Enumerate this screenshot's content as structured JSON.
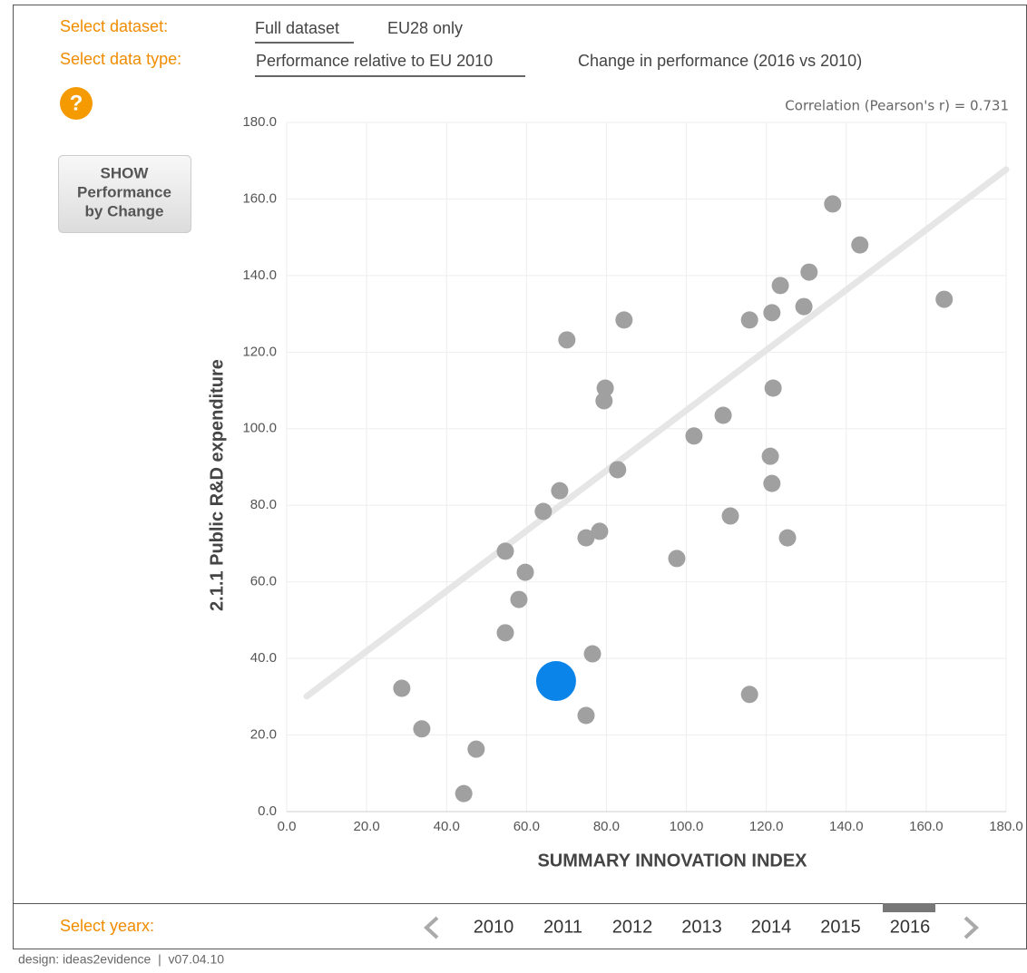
{
  "controls": {
    "dataset_label": "Select dataset:",
    "dataset_options": [
      "Full dataset",
      "EU28 only"
    ],
    "datatype_label": "Select data type:",
    "datatype_options": [
      "Performance relative to EU 2010",
      "Change in performance (2016 vs 2010)"
    ],
    "help_icon": "?",
    "button_lines": [
      "SHOW",
      "Performance",
      "by Change"
    ]
  },
  "chart_data": {
    "type": "scatter",
    "annotation": "Correlation (Pearson's r) = 0.731",
    "xlabel": "SUMMARY INNOVATION INDEX",
    "ylabel": "2.1.1 Public R&D expenditure",
    "xlim": [
      0,
      180
    ],
    "ylim": [
      0,
      180
    ],
    "xticks": [
      {
        "value": 0,
        "label": "0.0"
      },
      {
        "value": 20,
        "label": "20.0"
      },
      {
        "value": 40,
        "label": "40.0"
      },
      {
        "value": 60,
        "label": "60.0"
      },
      {
        "value": 80,
        "label": "80.0"
      },
      {
        "value": 100,
        "label": "100.0"
      },
      {
        "value": 120,
        "label": "120.0"
      },
      {
        "value": 140,
        "label": "140.0"
      },
      {
        "value": 160,
        "label": "160.0"
      },
      {
        "value": 180,
        "label": "180.0"
      }
    ],
    "yticks": [
      {
        "value": 0,
        "label": "0.0"
      },
      {
        "value": 20,
        "label": "20.0"
      },
      {
        "value": 40,
        "label": "40.0"
      },
      {
        "value": 60,
        "label": "60.0"
      },
      {
        "value": 80,
        "label": "80.0"
      },
      {
        "value": 100,
        "label": "100.0"
      },
      {
        "value": 120,
        "label": "120.0"
      },
      {
        "value": 140,
        "label": "140.0"
      },
      {
        "value": 160,
        "label": "160.0"
      },
      {
        "value": 180,
        "label": "180.0"
      }
    ],
    "grid": true,
    "color": "#a0a0a0",
    "x": [
      28.8,
      33.8,
      44.3,
      47.4,
      54.7,
      54.7,
      58.1,
      59.7,
      64.2,
      68.3,
      70.1,
      74.9,
      74.9,
      76.5,
      78.3,
      79.7,
      79.4,
      82.8,
      84.4,
      97.6,
      101.9,
      109.2,
      111.0,
      115.8,
      115.8,
      121.0,
      121.4,
      121.7,
      121.4,
      123.5,
      125.3,
      129.4,
      130.7,
      136.6,
      143.4,
      164.5
    ],
    "y": [
      32.2,
      21.6,
      4.7,
      16.3,
      46.7,
      68.0,
      55.4,
      62.5,
      78.4,
      83.8,
      123.2,
      71.5,
      25.1,
      41.2,
      73.2,
      110.6,
      107.3,
      89.3,
      128.4,
      66.1,
      98.1,
      103.5,
      77.2,
      128.4,
      30.6,
      92.8,
      130.3,
      110.6,
      85.7,
      137.4,
      71.5,
      131.9,
      140.9,
      158.7,
      148.0,
      133.8
    ],
    "highlight": {
      "x": 67.4,
      "y": 34.1,
      "color": "#0a84e8"
    },
    "trendline": {
      "x": [
        5,
        180
      ],
      "y": [
        30.1,
        167.7
      ],
      "color": "#e6e6e6"
    }
  },
  "year_bar": {
    "label": "Select yearx:",
    "years": [
      "2010",
      "2011",
      "2012",
      "2013",
      "2014",
      "2015",
      "2016"
    ],
    "selected": "2016"
  },
  "footer": "design: ideas2evidence  |  v07.04.10"
}
